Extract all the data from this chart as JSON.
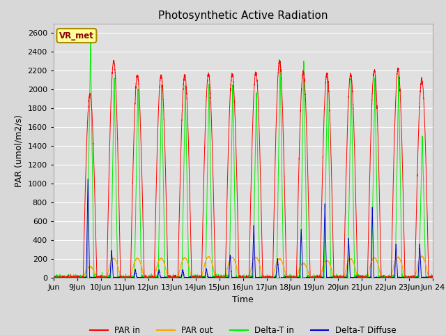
{
  "title": "Photosynthetic Active Radiation",
  "ylabel": "PAR (umol/m2/s)",
  "xlabel": "Time",
  "annotation": "VR_met",
  "ylim": [
    0,
    2700
  ],
  "yticks": [
    0,
    200,
    400,
    600,
    800,
    1000,
    1200,
    1400,
    1600,
    1800,
    2000,
    2200,
    2400,
    2600
  ],
  "colors": {
    "PAR in": "#ff0000",
    "PAR out": "#ffa500",
    "Delta-T in": "#00ee00",
    "Delta-T Diffuse": "#0000cc"
  },
  "legend_labels": [
    "PAR in",
    "PAR out",
    "Delta-T in",
    "Delta-T Diffuse"
  ],
  "fig_bg_color": "#d8d8d8",
  "plot_bg_color": "#e0e0e0",
  "grid_color": "#ffffff",
  "annotation_bg": "#ffff99",
  "annotation_border": "#aa8800",
  "title_fontsize": 11,
  "axis_fontsize": 9,
  "tick_fontsize": 8,
  "n_days": 16,
  "start_day": 8
}
